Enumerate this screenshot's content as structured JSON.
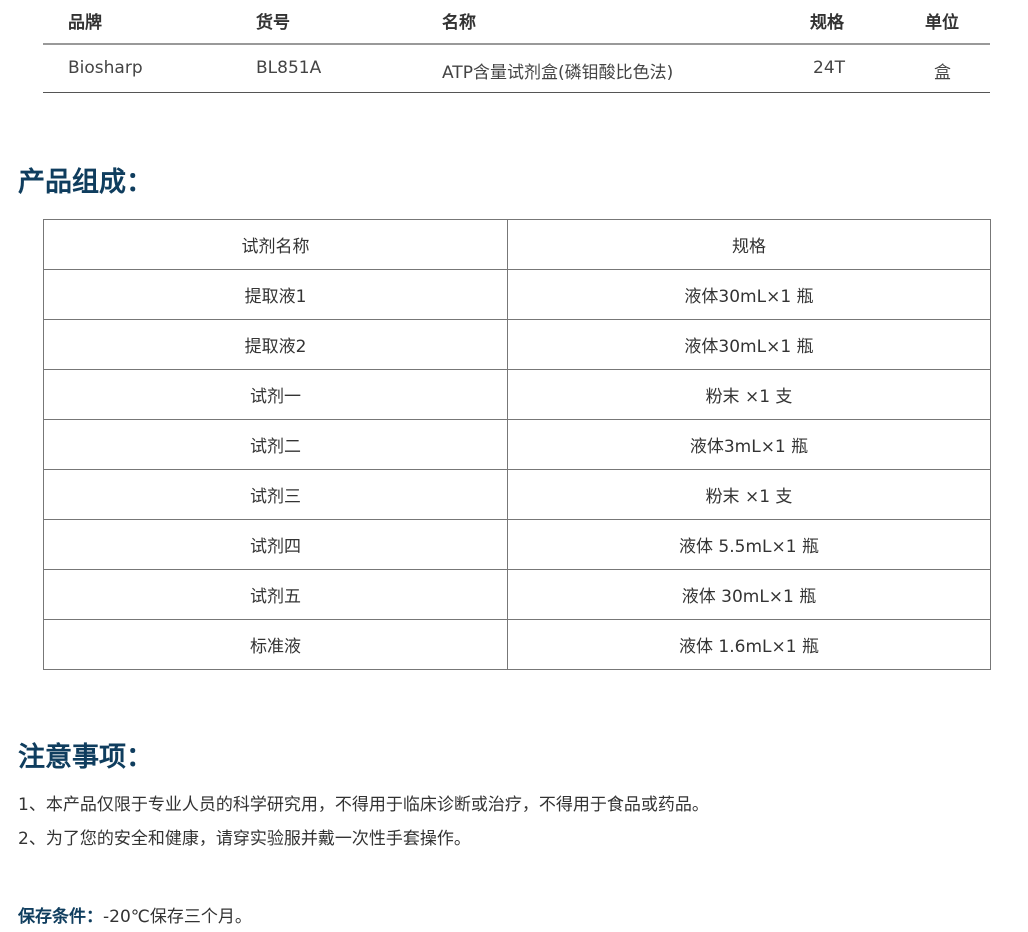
{
  "product_table": {
    "headers": [
      "品牌",
      "货号",
      "名称",
      "规格",
      "单位"
    ],
    "row": [
      "Biosharp",
      "BL851A",
      "ATP含量试剂盒(磷钼酸比色法)",
      "24T",
      "盒"
    ]
  },
  "composition": {
    "title": "产品组成：",
    "headers": [
      "试剂名称",
      "规格"
    ],
    "rows": [
      [
        "提取液1",
        "液体30mL×1 瓶"
      ],
      [
        "提取液2",
        "液体30mL×1 瓶"
      ],
      [
        "试剂一",
        "粉末 ×1 支"
      ],
      [
        "试剂二",
        "液体3mL×1 瓶"
      ],
      [
        "试剂三",
        "粉末 ×1 支"
      ],
      [
        "试剂四",
        "液体 5.5mL×1 瓶"
      ],
      [
        "试剂五",
        "液体 30mL×1 瓶"
      ],
      [
        "标准液",
        "液体 1.6mL×1 瓶"
      ]
    ]
  },
  "notes": {
    "title": "注意事项：",
    "items": [
      "1、本产品仅限于专业人员的科学研究用，不得用于临床诊断或治疗，不得用于食品或药品。",
      "2、为了您的安全和健康，请穿实验服并戴一次性手套操作。"
    ]
  },
  "storage": {
    "label": "保存条件：",
    "value": "-20℃保存三个月。"
  },
  "colors": {
    "heading": "#0f3d5e"
  }
}
